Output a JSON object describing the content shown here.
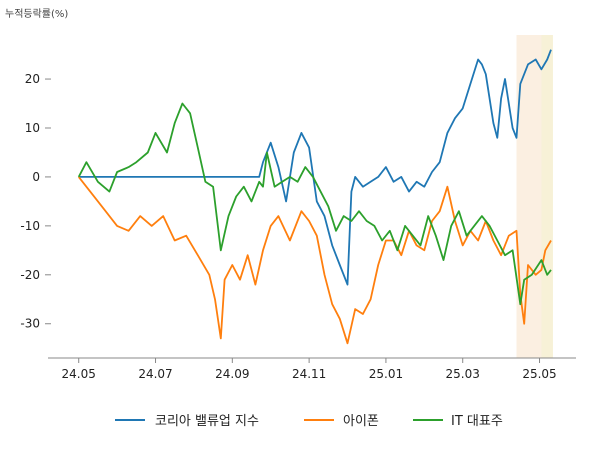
{
  "chart_data": {
    "type": "line",
    "unit_label": "누적등락률(%)",
    "x_ticks": [
      "24.05",
      "24.07",
      "24.09",
      "24.11",
      "25.01",
      "25.03",
      "25.05"
    ],
    "x_tick_positions_months": [
      0,
      2,
      4,
      6,
      8,
      10,
      12
    ],
    "xlim_months": [
      -0.8,
      12.95
    ],
    "y_ticks": [
      20,
      10,
      0,
      -10,
      -20,
      -30
    ],
    "ylim": [
      -37,
      29
    ],
    "highlight_bands": [
      {
        "from_month": 11.4,
        "to_month": 12.05,
        "color": "#fbefe1"
      },
      {
        "from_month": 12.05,
        "to_month": 12.35,
        "color": "#f7f1d7"
      }
    ],
    "series": [
      {
        "name": "코리아 밸류업 지수",
        "color": "#1f77b4",
        "points": [
          [
            0,
            0
          ],
          [
            0.2,
            0
          ],
          [
            0.5,
            0
          ],
          [
            1,
            0
          ],
          [
            1.5,
            0
          ],
          [
            2,
            0
          ],
          [
            2.5,
            0
          ],
          [
            3,
            0
          ],
          [
            3.5,
            0
          ],
          [
            4,
            0
          ],
          [
            4.5,
            0
          ],
          [
            4.7,
            0
          ],
          [
            4.8,
            3
          ],
          [
            5,
            7
          ],
          [
            5.2,
            2
          ],
          [
            5.4,
            -5
          ],
          [
            5.6,
            5
          ],
          [
            5.8,
            9
          ],
          [
            6,
            6
          ],
          [
            6.2,
            -5
          ],
          [
            6.4,
            -8
          ],
          [
            6.6,
            -14
          ],
          [
            6.8,
            -18
          ],
          [
            7,
            -22
          ],
          [
            7.1,
            -3
          ],
          [
            7.2,
            0
          ],
          [
            7.4,
            -2
          ],
          [
            7.6,
            -1
          ],
          [
            7.8,
            0
          ],
          [
            8,
            2
          ],
          [
            8.2,
            -1
          ],
          [
            8.4,
            0
          ],
          [
            8.6,
            -3
          ],
          [
            8.8,
            -1
          ],
          [
            9,
            -2
          ],
          [
            9.2,
            1
          ],
          [
            9.4,
            3
          ],
          [
            9.6,
            9
          ],
          [
            9.8,
            12
          ],
          [
            10,
            14
          ],
          [
            10.2,
            19
          ],
          [
            10.4,
            24
          ],
          [
            10.5,
            23
          ],
          [
            10.6,
            21
          ],
          [
            10.8,
            11
          ],
          [
            10.9,
            8
          ],
          [
            11,
            16
          ],
          [
            11.1,
            20
          ],
          [
            11.3,
            10
          ],
          [
            11.4,
            8
          ],
          [
            11.5,
            19
          ],
          [
            11.7,
            23
          ],
          [
            11.9,
            24
          ],
          [
            12.05,
            22
          ],
          [
            12.2,
            24
          ],
          [
            12.3,
            26
          ]
        ]
      },
      {
        "name": "아이폰",
        "color": "#ff7f0e",
        "points": [
          [
            0,
            0
          ],
          [
            0.3,
            -3
          ],
          [
            0.7,
            -7
          ],
          [
            1,
            -10
          ],
          [
            1.3,
            -11
          ],
          [
            1.6,
            -8
          ],
          [
            1.9,
            -10
          ],
          [
            2.2,
            -8
          ],
          [
            2.5,
            -13
          ],
          [
            2.8,
            -12
          ],
          [
            3.1,
            -16
          ],
          [
            3.4,
            -20
          ],
          [
            3.55,
            -25
          ],
          [
            3.7,
            -33
          ],
          [
            3.8,
            -21
          ],
          [
            4,
            -18
          ],
          [
            4.2,
            -21
          ],
          [
            4.4,
            -16
          ],
          [
            4.6,
            -22
          ],
          [
            4.8,
            -15
          ],
          [
            5,
            -10
          ],
          [
            5.2,
            -8
          ],
          [
            5.5,
            -13
          ],
          [
            5.8,
            -7
          ],
          [
            6,
            -9
          ],
          [
            6.2,
            -12
          ],
          [
            6.4,
            -20
          ],
          [
            6.6,
            -26
          ],
          [
            6.8,
            -29
          ],
          [
            7,
            -34
          ],
          [
            7.2,
            -27
          ],
          [
            7.4,
            -28
          ],
          [
            7.6,
            -25
          ],
          [
            7.8,
            -18
          ],
          [
            8,
            -13
          ],
          [
            8.2,
            -13
          ],
          [
            8.4,
            -16
          ],
          [
            8.6,
            -11
          ],
          [
            8.8,
            -14
          ],
          [
            9,
            -15
          ],
          [
            9.2,
            -9
          ],
          [
            9.4,
            -7
          ],
          [
            9.6,
            -2
          ],
          [
            9.8,
            -9
          ],
          [
            10,
            -14
          ],
          [
            10.2,
            -11
          ],
          [
            10.4,
            -13
          ],
          [
            10.6,
            -9
          ],
          [
            10.8,
            -13
          ],
          [
            11,
            -16
          ],
          [
            11.2,
            -12
          ],
          [
            11.4,
            -11
          ],
          [
            11.5,
            -24
          ],
          [
            11.6,
            -30
          ],
          [
            11.7,
            -18
          ],
          [
            11.9,
            -20
          ],
          [
            12.05,
            -19
          ],
          [
            12.15,
            -15
          ],
          [
            12.3,
            -13
          ]
        ]
      },
      {
        "name": "IT 대표주",
        "color": "#2ca02c",
        "points": [
          [
            0,
            0
          ],
          [
            0.2,
            3
          ],
          [
            0.5,
            -1
          ],
          [
            0.8,
            -3
          ],
          [
            1,
            1
          ],
          [
            1.3,
            2
          ],
          [
            1.5,
            3
          ],
          [
            1.8,
            5
          ],
          [
            2,
            9
          ],
          [
            2.3,
            5
          ],
          [
            2.5,
            11
          ],
          [
            2.7,
            15
          ],
          [
            2.9,
            13
          ],
          [
            3.1,
            6
          ],
          [
            3.3,
            -1
          ],
          [
            3.5,
            -2
          ],
          [
            3.7,
            -15
          ],
          [
            3.9,
            -8
          ],
          [
            4.1,
            -4
          ],
          [
            4.3,
            -2
          ],
          [
            4.5,
            -5
          ],
          [
            4.7,
            -1
          ],
          [
            4.8,
            -2
          ],
          [
            4.9,
            5
          ],
          [
            5.1,
            -2
          ],
          [
            5.3,
            -1
          ],
          [
            5.5,
            0
          ],
          [
            5.7,
            -1
          ],
          [
            5.9,
            2
          ],
          [
            6.1,
            0
          ],
          [
            6.3,
            -3
          ],
          [
            6.5,
            -6
          ],
          [
            6.7,
            -11
          ],
          [
            6.9,
            -8
          ],
          [
            7.1,
            -9
          ],
          [
            7.3,
            -7
          ],
          [
            7.5,
            -9
          ],
          [
            7.7,
            -10
          ],
          [
            7.9,
            -13
          ],
          [
            8.1,
            -11
          ],
          [
            8.3,
            -15
          ],
          [
            8.5,
            -10
          ],
          [
            8.7,
            -12
          ],
          [
            8.9,
            -14
          ],
          [
            9.1,
            -8
          ],
          [
            9.3,
            -12
          ],
          [
            9.5,
            -17
          ],
          [
            9.7,
            -10
          ],
          [
            9.9,
            -7
          ],
          [
            10.1,
            -12
          ],
          [
            10.3,
            -10
          ],
          [
            10.5,
            -8
          ],
          [
            10.7,
            -10
          ],
          [
            10.9,
            -13
          ],
          [
            11.1,
            -16
          ],
          [
            11.3,
            -15
          ],
          [
            11.5,
            -26
          ],
          [
            11.6,
            -21
          ],
          [
            11.8,
            -20
          ],
          [
            12.05,
            -17
          ],
          [
            12.2,
            -20
          ],
          [
            12.3,
            -19
          ]
        ]
      }
    ]
  },
  "legend": {
    "items": [
      {
        "label": "코리아 밸류업 지수",
        "color": "#1f77b4"
      },
      {
        "label": "아이폰",
        "color": "#ff7f0e"
      },
      {
        "label": "IT 대표주",
        "color": "#2ca02c"
      }
    ]
  }
}
